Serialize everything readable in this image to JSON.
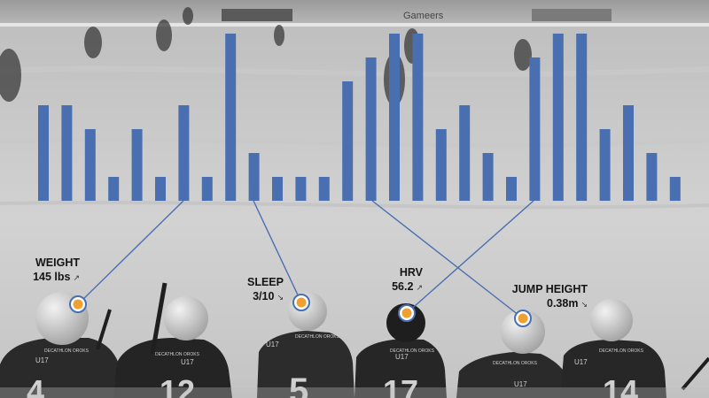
{
  "chart_data": {
    "type": "bar",
    "bar_color": "#4a6fb0",
    "values": [
      4,
      4,
      3,
      1,
      3,
      1,
      4,
      1,
      7,
      2,
      1,
      1,
      1,
      5,
      6,
      7,
      7,
      3,
      4,
      2,
      1,
      6,
      7,
      7,
      3,
      4,
      2,
      1
    ],
    "ylim": [
      0,
      7
    ],
    "grid": false
  },
  "metrics": [
    {
      "label": "WEIGHT",
      "value": "145 lbs"
    },
    {
      "label": "SLEEP",
      "value": "3/10"
    },
    {
      "label": "HRV",
      "value": "56.2"
    },
    {
      "label": "JUMP HEIGHT",
      "value": "0.38m"
    }
  ],
  "background": {
    "sponsor_text": "Gameers",
    "jerseys": [
      {
        "team": "U17",
        "brand": "DECATHLON OROKS",
        "number": "4"
      },
      {
        "team": "U17",
        "brand": "DECATHLON OROKS",
        "number": "12"
      },
      {
        "team": "U17",
        "brand": "DECATHLON OROKS",
        "number": "5"
      },
      {
        "team": "U17",
        "brand": "DECATHLON OROKS",
        "number": "17"
      },
      {
        "team": "U17",
        "brand": "DECATHLON OROKS",
        "number": ""
      },
      {
        "team": "U17",
        "brand": "DECATHLON OROKS",
        "number": "14"
      }
    ]
  },
  "colors": {
    "marker_fill": "#f0a030",
    "marker_ring": "#4a6fb0",
    "connector": "#4a6fb0"
  }
}
